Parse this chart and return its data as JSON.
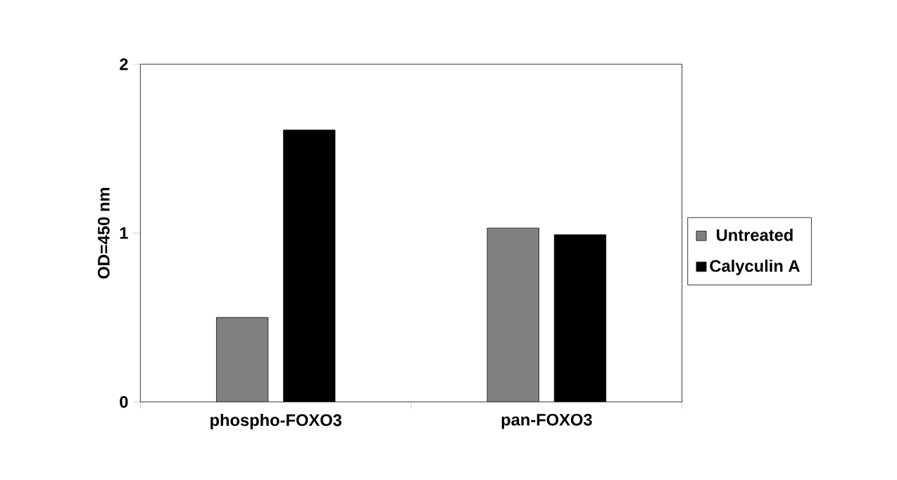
{
  "chart_data": {
    "type": "bar",
    "ylabel": "OD=450 nm",
    "categories": [
      "phospho-FOXO3",
      "pan-FOXO3"
    ],
    "series": [
      {
        "name": "Untreated",
        "color": "#808080",
        "values": [
          0.5,
          1.03
        ]
      },
      {
        "name": "Calyculin A",
        "color": "#000000",
        "values": [
          1.61,
          0.99
        ]
      }
    ],
    "ylim": [
      0,
      2
    ],
    "yticks": [
      0,
      1,
      2
    ],
    "grid": false,
    "legend": "right"
  }
}
